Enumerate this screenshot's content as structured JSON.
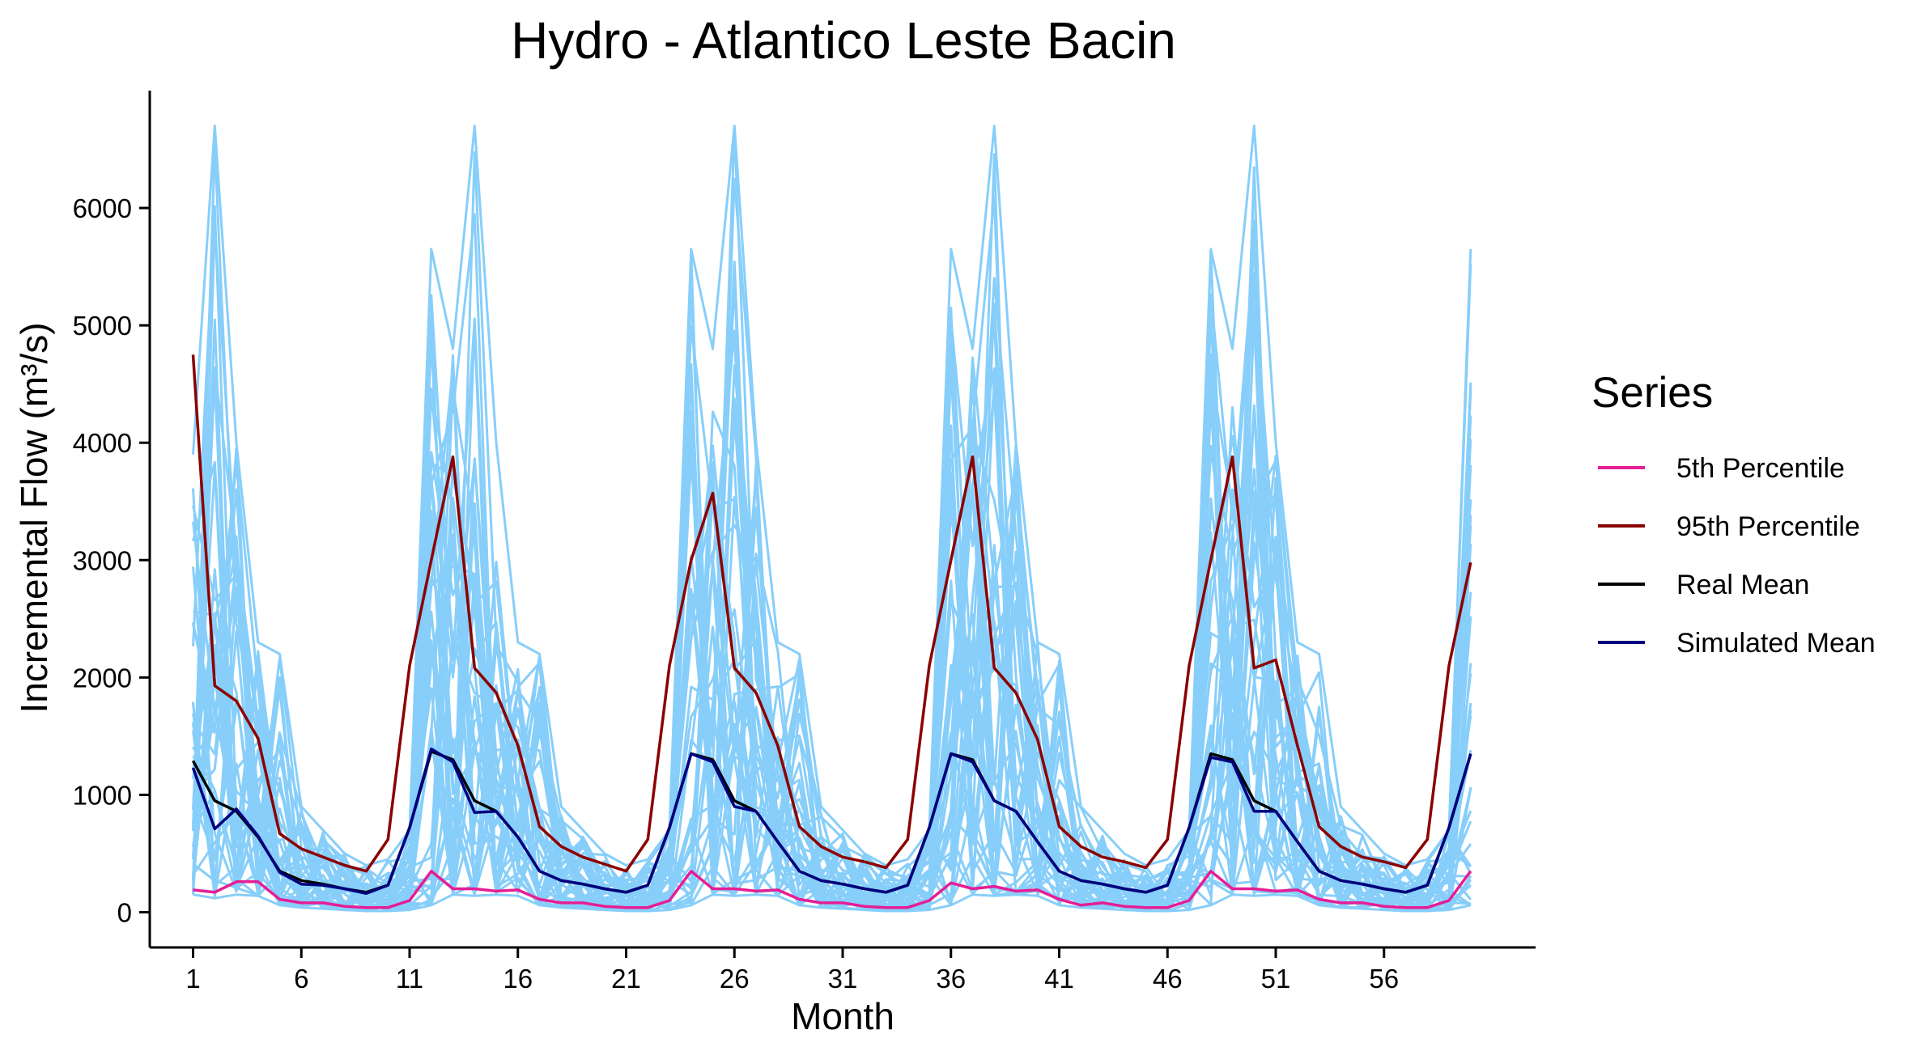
{
  "chart_data": {
    "type": "line",
    "title": "Hydro - Atlantico Leste Bacin",
    "xlabel": "Month",
    "ylabel": "Incremental Flow (m³/s)",
    "xlim": [
      -1,
      63
    ],
    "ylim": [
      -300,
      7000
    ],
    "x_ticks": [
      1,
      6,
      11,
      16,
      21,
      26,
      31,
      36,
      41,
      46,
      51,
      56
    ],
    "y_ticks": [
      0,
      1000,
      2000,
      3000,
      4000,
      5000,
      6000
    ],
    "grid": false,
    "legend": {
      "title": "Series",
      "position": "right"
    },
    "colors": {
      "scenarios": "#87CEFA",
      "p5": "#E61E96",
      "p95": "#8B0000",
      "real_mean": "#000000",
      "sim_mean": "#00007F"
    },
    "scenario_envelope": {
      "name": "",
      "count": 40,
      "max_values": [
        3900,
        6700,
        4000,
        2300,
        2200,
        900,
        700,
        500,
        400,
        450,
        700,
        5650,
        4800,
        6700,
        4000,
        2300,
        2200,
        900,
        700,
        500,
        400,
        450,
        700,
        5650,
        4800,
        6700,
        4000,
        2300,
        2200,
        900,
        700,
        500,
        400,
        450,
        700,
        5650,
        4800,
        6700,
        4000,
        2300,
        2200,
        900,
        700,
        500,
        400,
        450,
        700,
        5650,
        4800,
        6700,
        4000,
        2300,
        2200,
        900,
        700,
        500,
        400,
        450,
        700,
        5650
      ],
      "min_values": [
        150,
        120,
        150,
        140,
        60,
        40,
        30,
        20,
        10,
        10,
        20,
        60,
        150,
        140,
        150,
        140,
        60,
        40,
        30,
        20,
        10,
        10,
        20,
        60,
        150,
        140,
        150,
        140,
        60,
        40,
        30,
        20,
        10,
        10,
        20,
        60,
        150,
        140,
        150,
        140,
        60,
        40,
        30,
        20,
        10,
        10,
        20,
        60,
        150,
        140,
        150,
        140,
        60,
        40,
        30,
        20,
        10,
        10,
        20,
        60
      ]
    },
    "series": [
      {
        "name": "5th Percentile",
        "color": "#E61E96",
        "values": [
          190,
          170,
          260,
          260,
          110,
          80,
          80,
          50,
          40,
          40,
          100,
          350,
          200,
          200,
          180,
          190,
          110,
          80,
          80,
          50,
          40,
          40,
          100,
          350,
          200,
          200,
          180,
          190,
          110,
          80,
          80,
          50,
          40,
          40,
          100,
          250,
          200,
          220,
          180,
          190,
          110,
          60,
          80,
          50,
          40,
          40,
          100,
          350,
          200,
          200,
          180,
          190,
          110,
          80,
          80,
          50,
          40,
          40,
          100,
          350
        ]
      },
      {
        "name": "95th Percentile",
        "color": "#8B0000",
        "values": [
          4750,
          1930,
          1800,
          1480,
          670,
          540,
          470,
          400,
          350,
          620,
          2100,
          3000,
          3880,
          2080,
          1870,
          1420,
          730,
          560,
          470,
          410,
          350,
          620,
          2100,
          3000,
          3570,
          2080,
          1870,
          1420,
          730,
          560,
          470,
          430,
          380,
          620,
          2100,
          3000,
          3880,
          2080,
          1870,
          1470,
          730,
          560,
          470,
          430,
          380,
          620,
          2100,
          3000,
          3880,
          2080,
          2150,
          1420,
          730,
          560,
          470,
          430,
          380,
          620,
          2100,
          2980
        ]
      },
      {
        "name": "Real Mean",
        "color": "#000000",
        "values": [
          1290,
          950,
          860,
          640,
          350,
          270,
          240,
          200,
          170,
          230,
          720,
          1370,
          1300,
          950,
          860,
          640,
          350,
          270,
          240,
          200,
          170,
          230,
          720,
          1350,
          1300,
          950,
          860,
          600,
          350,
          270,
          240,
          200,
          170,
          230,
          720,
          1350,
          1300,
          950,
          860,
          600,
          350,
          270,
          240,
          200,
          170,
          230,
          720,
          1350,
          1300,
          950,
          860,
          600,
          350,
          270,
          240,
          200,
          170,
          230,
          720,
          1350
        ]
      },
      {
        "name": "Simulated Mean",
        "color": "#00007F",
        "values": [
          1230,
          710,
          880,
          650,
          340,
          240,
          230,
          200,
          160,
          230,
          720,
          1390,
          1280,
          850,
          860,
          640,
          350,
          270,
          240,
          200,
          170,
          230,
          720,
          1350,
          1280,
          900,
          860,
          600,
          350,
          270,
          240,
          200,
          170,
          230,
          720,
          1350,
          1280,
          950,
          860,
          600,
          350,
          270,
          240,
          200,
          170,
          230,
          720,
          1320,
          1280,
          860,
          860,
          600,
          350,
          270,
          240,
          200,
          170,
          230,
          720,
          1350
        ]
      }
    ]
  }
}
